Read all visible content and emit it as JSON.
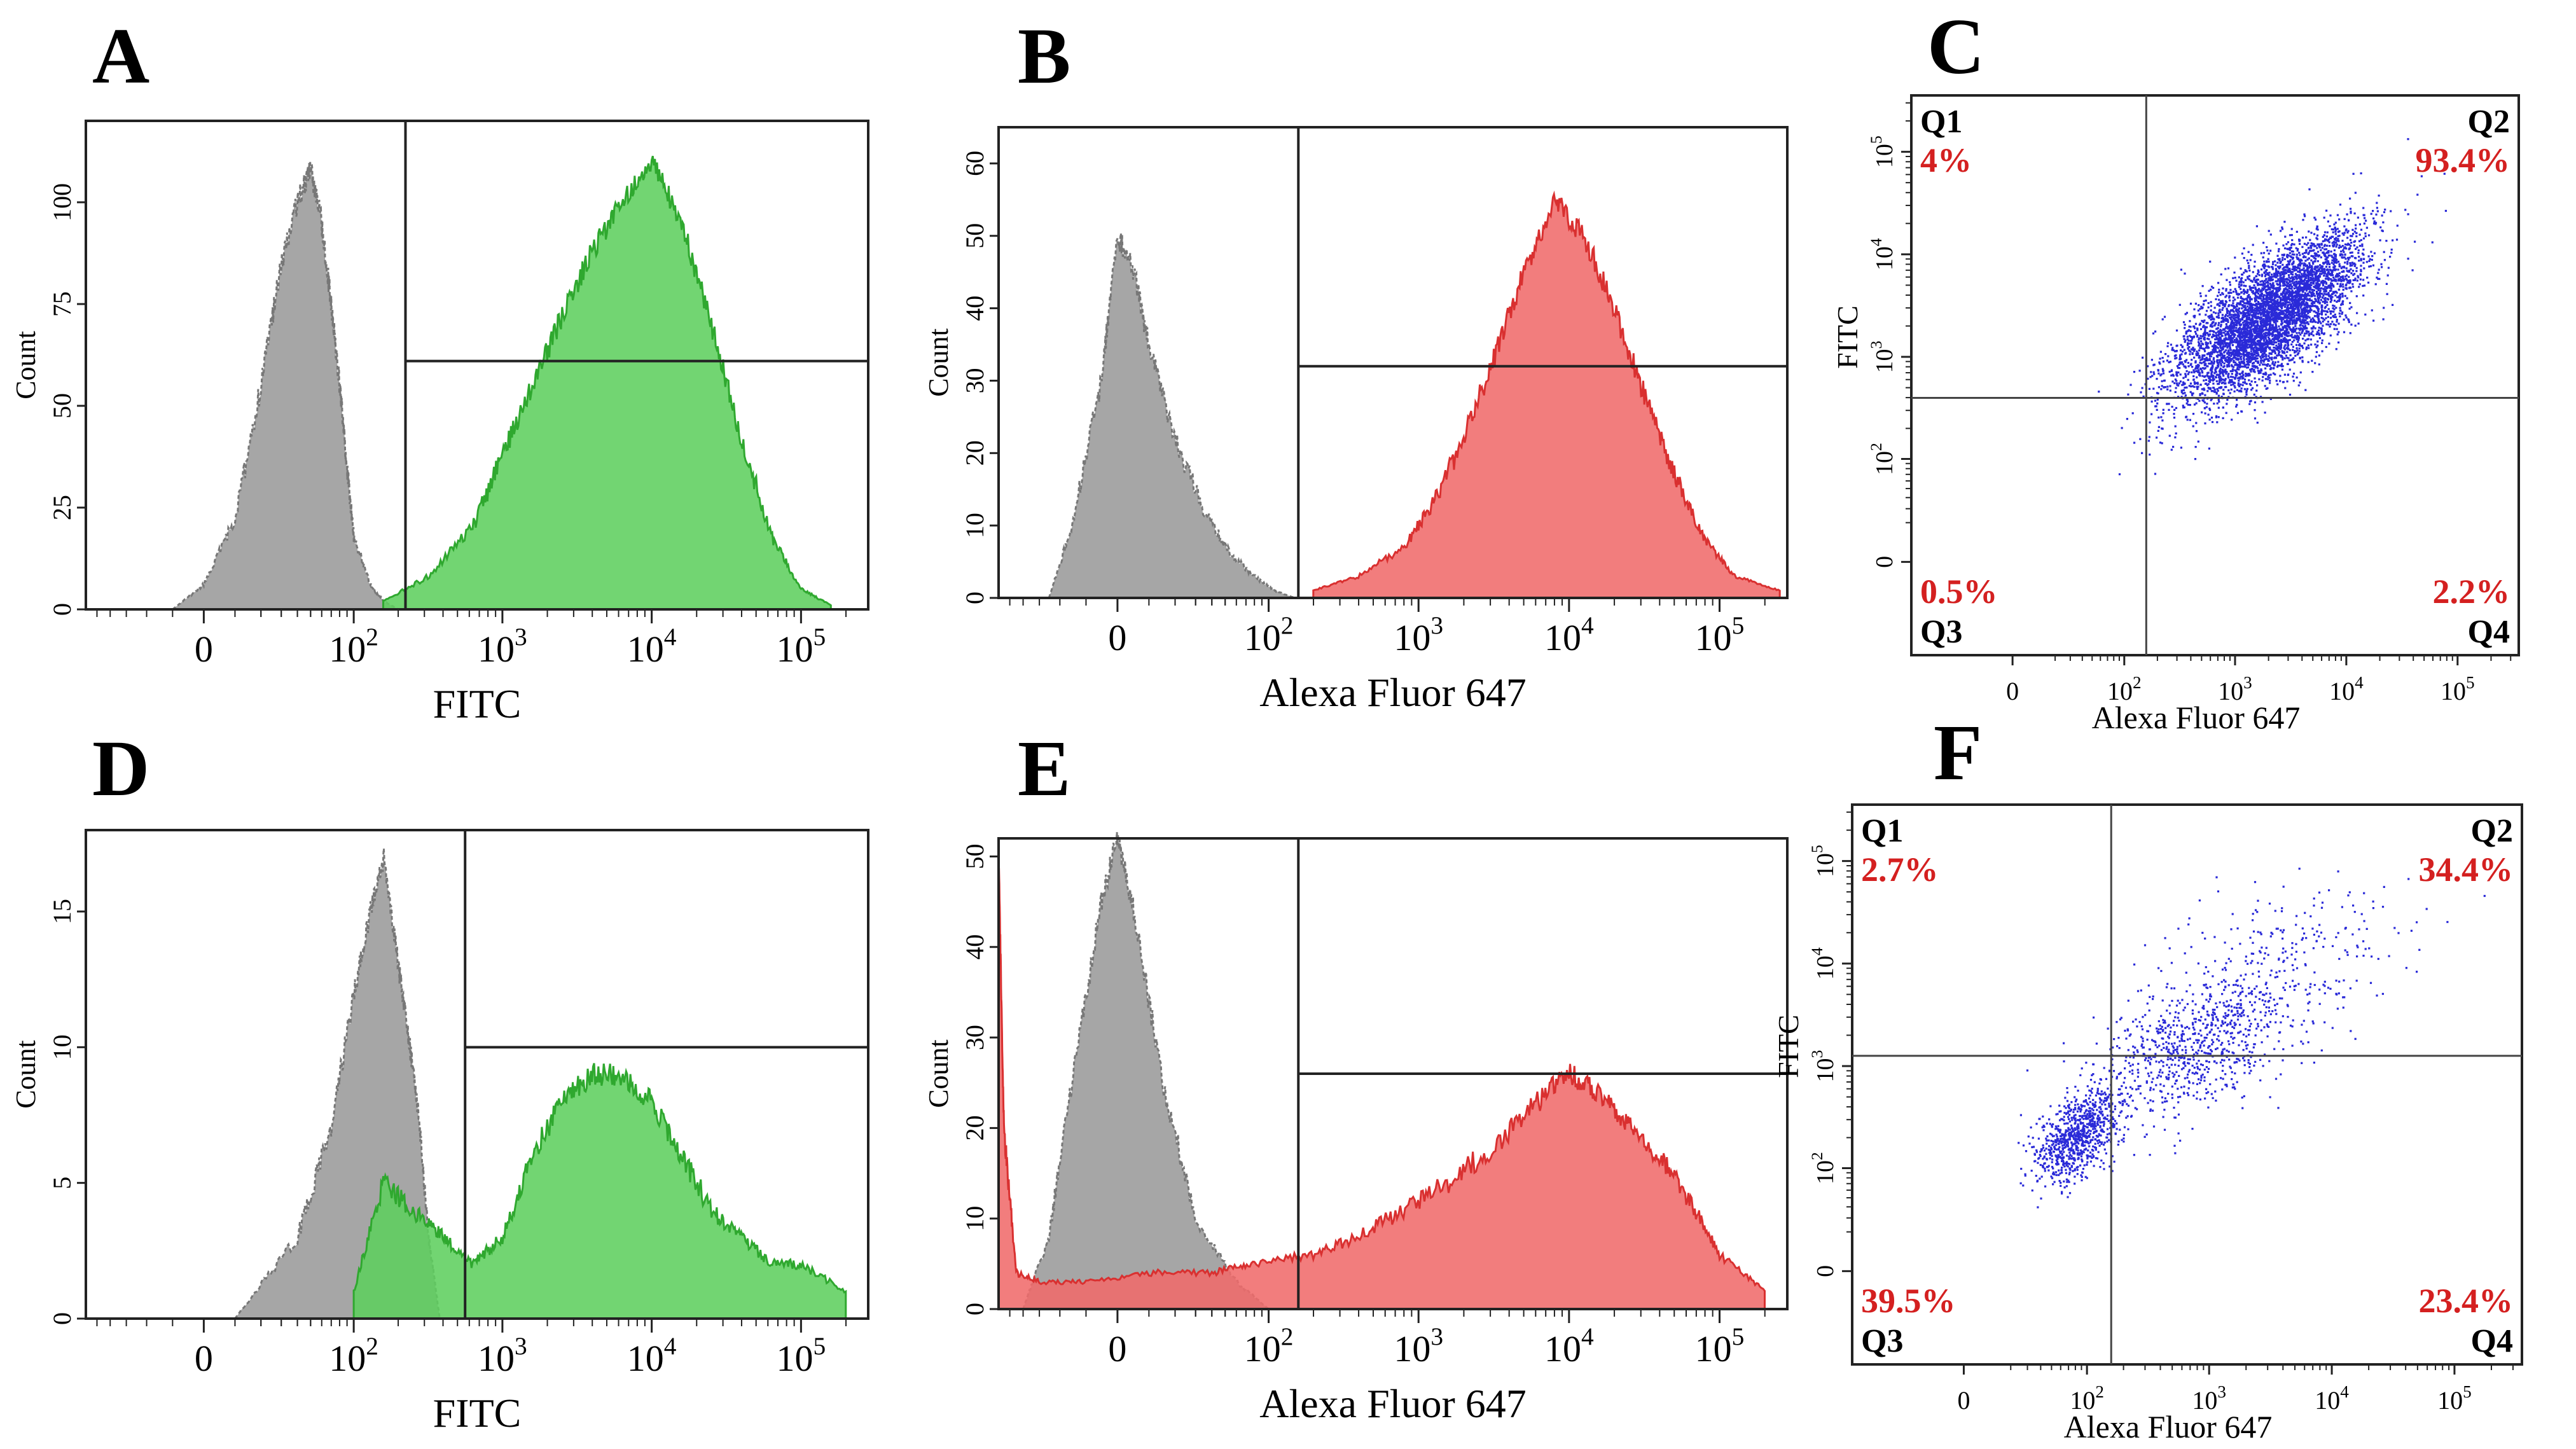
{
  "chart_data": [
    {
      "panel": "A",
      "type": "area",
      "xlabel": "FITC",
      "ylabel": "Count",
      "yticks": [
        "0",
        "25",
        "50",
        "75",
        "100"
      ],
      "ylim": [
        0,
        120
      ],
      "xticks": [
        "0",
        "10^2",
        "10^3",
        "10^4",
        "10^5"
      ],
      "gate": {
        "from": "10^2.35",
        "marker_count": 61
      },
      "series": [
        {
          "name": "",
          "color": "#9e9e9e",
          "style": "dashed",
          "x": [
            "-10",
            "0",
            "10",
            "20",
            "30",
            "40",
            "50",
            "60",
            "70",
            "80",
            "90",
            "100",
            "130",
            "160",
            "200"
          ],
          "values": [
            0,
            6,
            22,
            55,
            85,
            100,
            108,
            95,
            75,
            55,
            35,
            18,
            6,
            2,
            0
          ]
        },
        {
          "name": "",
          "color": "#5ecf5e",
          "style": "solid",
          "x": [
            "10^2.2",
            "10^2.5",
            "10^2.8",
            "10^3.0",
            "10^3.2",
            "10^3.4",
            "10^3.6",
            "10^3.8",
            "10^4.0",
            "10^4.2",
            "10^4.4",
            "10^4.6",
            "10^4.8",
            "10^5.0",
            "10^5.2"
          ],
          "values": [
            2,
            8,
            20,
            38,
            55,
            72,
            88,
            100,
            110,
            95,
            70,
            42,
            18,
            5,
            1
          ]
        }
      ]
    },
    {
      "panel": "B",
      "type": "area",
      "xlabel": "Alexa Fluor 647",
      "ylabel": "Count",
      "yticks": [
        "0",
        "10",
        "20",
        "30",
        "40",
        "50",
        "60"
      ],
      "ylim": [
        0,
        65
      ],
      "xticks": [
        "0",
        "10^2",
        "10^3",
        "10^4",
        "10^5"
      ],
      "gate": {
        "from": "10^2.2",
        "marker_count": 32
      },
      "series": [
        {
          "name": "",
          "color": "#9e9e9e",
          "style": "dashed",
          "x": [
            "-25",
            "-15",
            "-5",
            "0",
            "5",
            "10",
            "20",
            "35",
            "55",
            "80",
            "110",
            "150"
          ],
          "values": [
            0,
            10,
            30,
            50,
            45,
            35,
            22,
            12,
            6,
            3,
            1,
            0
          ]
        },
        {
          "name": "",
          "color": "#f06b6b",
          "style": "solid",
          "x": [
            "10^2.3",
            "10^2.6",
            "10^2.9",
            "10^3.1",
            "10^3.3",
            "10^3.5",
            "10^3.7",
            "10^3.9",
            "10^4.1",
            "10^4.3",
            "10^4.5",
            "10^4.7",
            "10^4.9",
            "10^5.1",
            "10^5.4"
          ],
          "values": [
            1,
            3,
            7,
            13,
            22,
            33,
            45,
            55,
            50,
            40,
            28,
            17,
            8,
            3,
            1
          ]
        }
      ]
    },
    {
      "panel": "C",
      "type": "scatter",
      "xlabel": "Alexa Fluor 647",
      "ylabel": "FITC",
      "xticks": [
        "0",
        "10^2",
        "10^3",
        "10^4",
        "10^5"
      ],
      "yticks": [
        "0",
        "10^2",
        "10^3",
        "10^4",
        "10^5"
      ],
      "gate": {
        "x": "10^2.2",
        "y": "10^2.6"
      },
      "quadrants": [
        {
          "name": "Q1",
          "value": "4%"
        },
        {
          "name": "Q2",
          "value": "93.4%"
        },
        {
          "name": "Q3",
          "value": "0.5%"
        },
        {
          "name": "Q4",
          "value": "2.2%"
        }
      ],
      "color": "#2a2ad8",
      "clusters": [
        {
          "center_log": [
            3.3,
            3.4
          ],
          "spread_log": [
            0.42,
            0.4
          ],
          "n": 5200,
          "corr": 0.7
        }
      ]
    },
    {
      "panel": "D",
      "type": "area",
      "xlabel": "FITC",
      "ylabel": "Count",
      "yticks": [
        "0",
        "5",
        "10",
        "15"
      ],
      "ylim": [
        0,
        18
      ],
      "xticks": [
        "0",
        "10^2",
        "10^3",
        "10^4",
        "10^5"
      ],
      "gate": {
        "from": "10^2.75",
        "marker_count": 10
      },
      "series": [
        {
          "name": "",
          "color": "#9e9e9e",
          "style": "dashed",
          "x": [
            "10",
            "40",
            "70",
            "100",
            "130",
            "160",
            "200",
            "240",
            "280",
            "320",
            "380"
          ],
          "values": [
            0,
            3,
            7,
            12,
            15,
            17,
            13,
            10,
            7,
            3,
            0
          ]
        },
        {
          "name": "",
          "color": "#5ecf5e",
          "style": "solid",
          "x": [
            "10^2.0",
            "10^2.2",
            "10^2.4",
            "10^2.6",
            "10^2.8",
            "10^3.0",
            "10^3.2",
            "10^3.4",
            "10^3.6",
            "10^3.8",
            "10^4.0",
            "10^4.2",
            "10^4.4",
            "10^4.6",
            "10^4.8",
            "10^5.0",
            "10^5.3"
          ],
          "values": [
            1,
            5,
            4,
            3,
            2,
            3,
            6,
            8,
            9,
            9,
            8,
            6,
            4,
            3,
            2,
            2,
            1
          ]
        }
      ]
    },
    {
      "panel": "E",
      "type": "area",
      "xlabel": "Alexa Fluor 647",
      "ylabel": "Count",
      "yticks": [
        "0",
        "10",
        "20",
        "30",
        "40",
        "50"
      ],
      "ylim": [
        0,
        52
      ],
      "xticks": [
        "0",
        "10^2",
        "10^3",
        "10^4",
        "10^5"
      ],
      "gate": {
        "from": "10^2.2",
        "marker_count": 26
      },
      "series": [
        {
          "name": "",
          "color": "#9e9e9e",
          "style": "dashed",
          "x": [
            "-40",
            "-25",
            "-15",
            "-5",
            "0",
            "5",
            "15",
            "30",
            "60",
            "100"
          ],
          "values": [
            0,
            8,
            25,
            45,
            52,
            44,
            25,
            10,
            3,
            0
          ]
        },
        {
          "name": "",
          "color": "#f06b6b",
          "style": "solid",
          "x": [
            "-60",
            "-55",
            "-45",
            "-30",
            "-10",
            "10",
            "40",
            "80",
            "10^2.3",
            "10^2.6",
            "10^2.9",
            "10^3.2",
            "10^3.5",
            "10^3.8",
            "10^4.0",
            "10^4.2",
            "10^4.4",
            "10^4.6",
            "10^4.8",
            "10^5.0",
            "10^5.3"
          ],
          "values": [
            50,
            20,
            4,
            3,
            3,
            4,
            4,
            5,
            6,
            8,
            11,
            14,
            18,
            23,
            26,
            24,
            20,
            17,
            12,
            6,
            2
          ]
        }
      ]
    },
    {
      "panel": "F",
      "type": "scatter",
      "xlabel": "Alexa Fluor 647",
      "ylabel": "FITC",
      "xticks": [
        "0",
        "10^2",
        "10^3",
        "10^4",
        "10^5"
      ],
      "yticks": [
        "0",
        "10^2",
        "10^3",
        "10^4",
        "10^5"
      ],
      "gate": {
        "x": "10^2.2",
        "y": "10^3.1"
      },
      "quadrants": [
        {
          "name": "Q1",
          "value": "2.7%"
        },
        {
          "name": "Q2",
          "value": "34.4%"
        },
        {
          "name": "Q3",
          "value": "39.5%"
        },
        {
          "name": "Q4",
          "value": "23.4%"
        }
      ],
      "color": "#2a2ad8",
      "clusters": [
        {
          "center_log": [
            1.9,
            2.3
          ],
          "spread_log": [
            0.18,
            0.22
          ],
          "n": 850,
          "corr": 0.5
        },
        {
          "center_log": [
            2.9,
            3.2
          ],
          "spread_log": [
            0.45,
            0.4
          ],
          "n": 850,
          "corr": 0.5
        },
        {
          "center_log": [
            3.6,
            4.1
          ],
          "spread_log": [
            0.5,
            0.4
          ],
          "n": 220,
          "corr": 0.2
        }
      ]
    }
  ]
}
